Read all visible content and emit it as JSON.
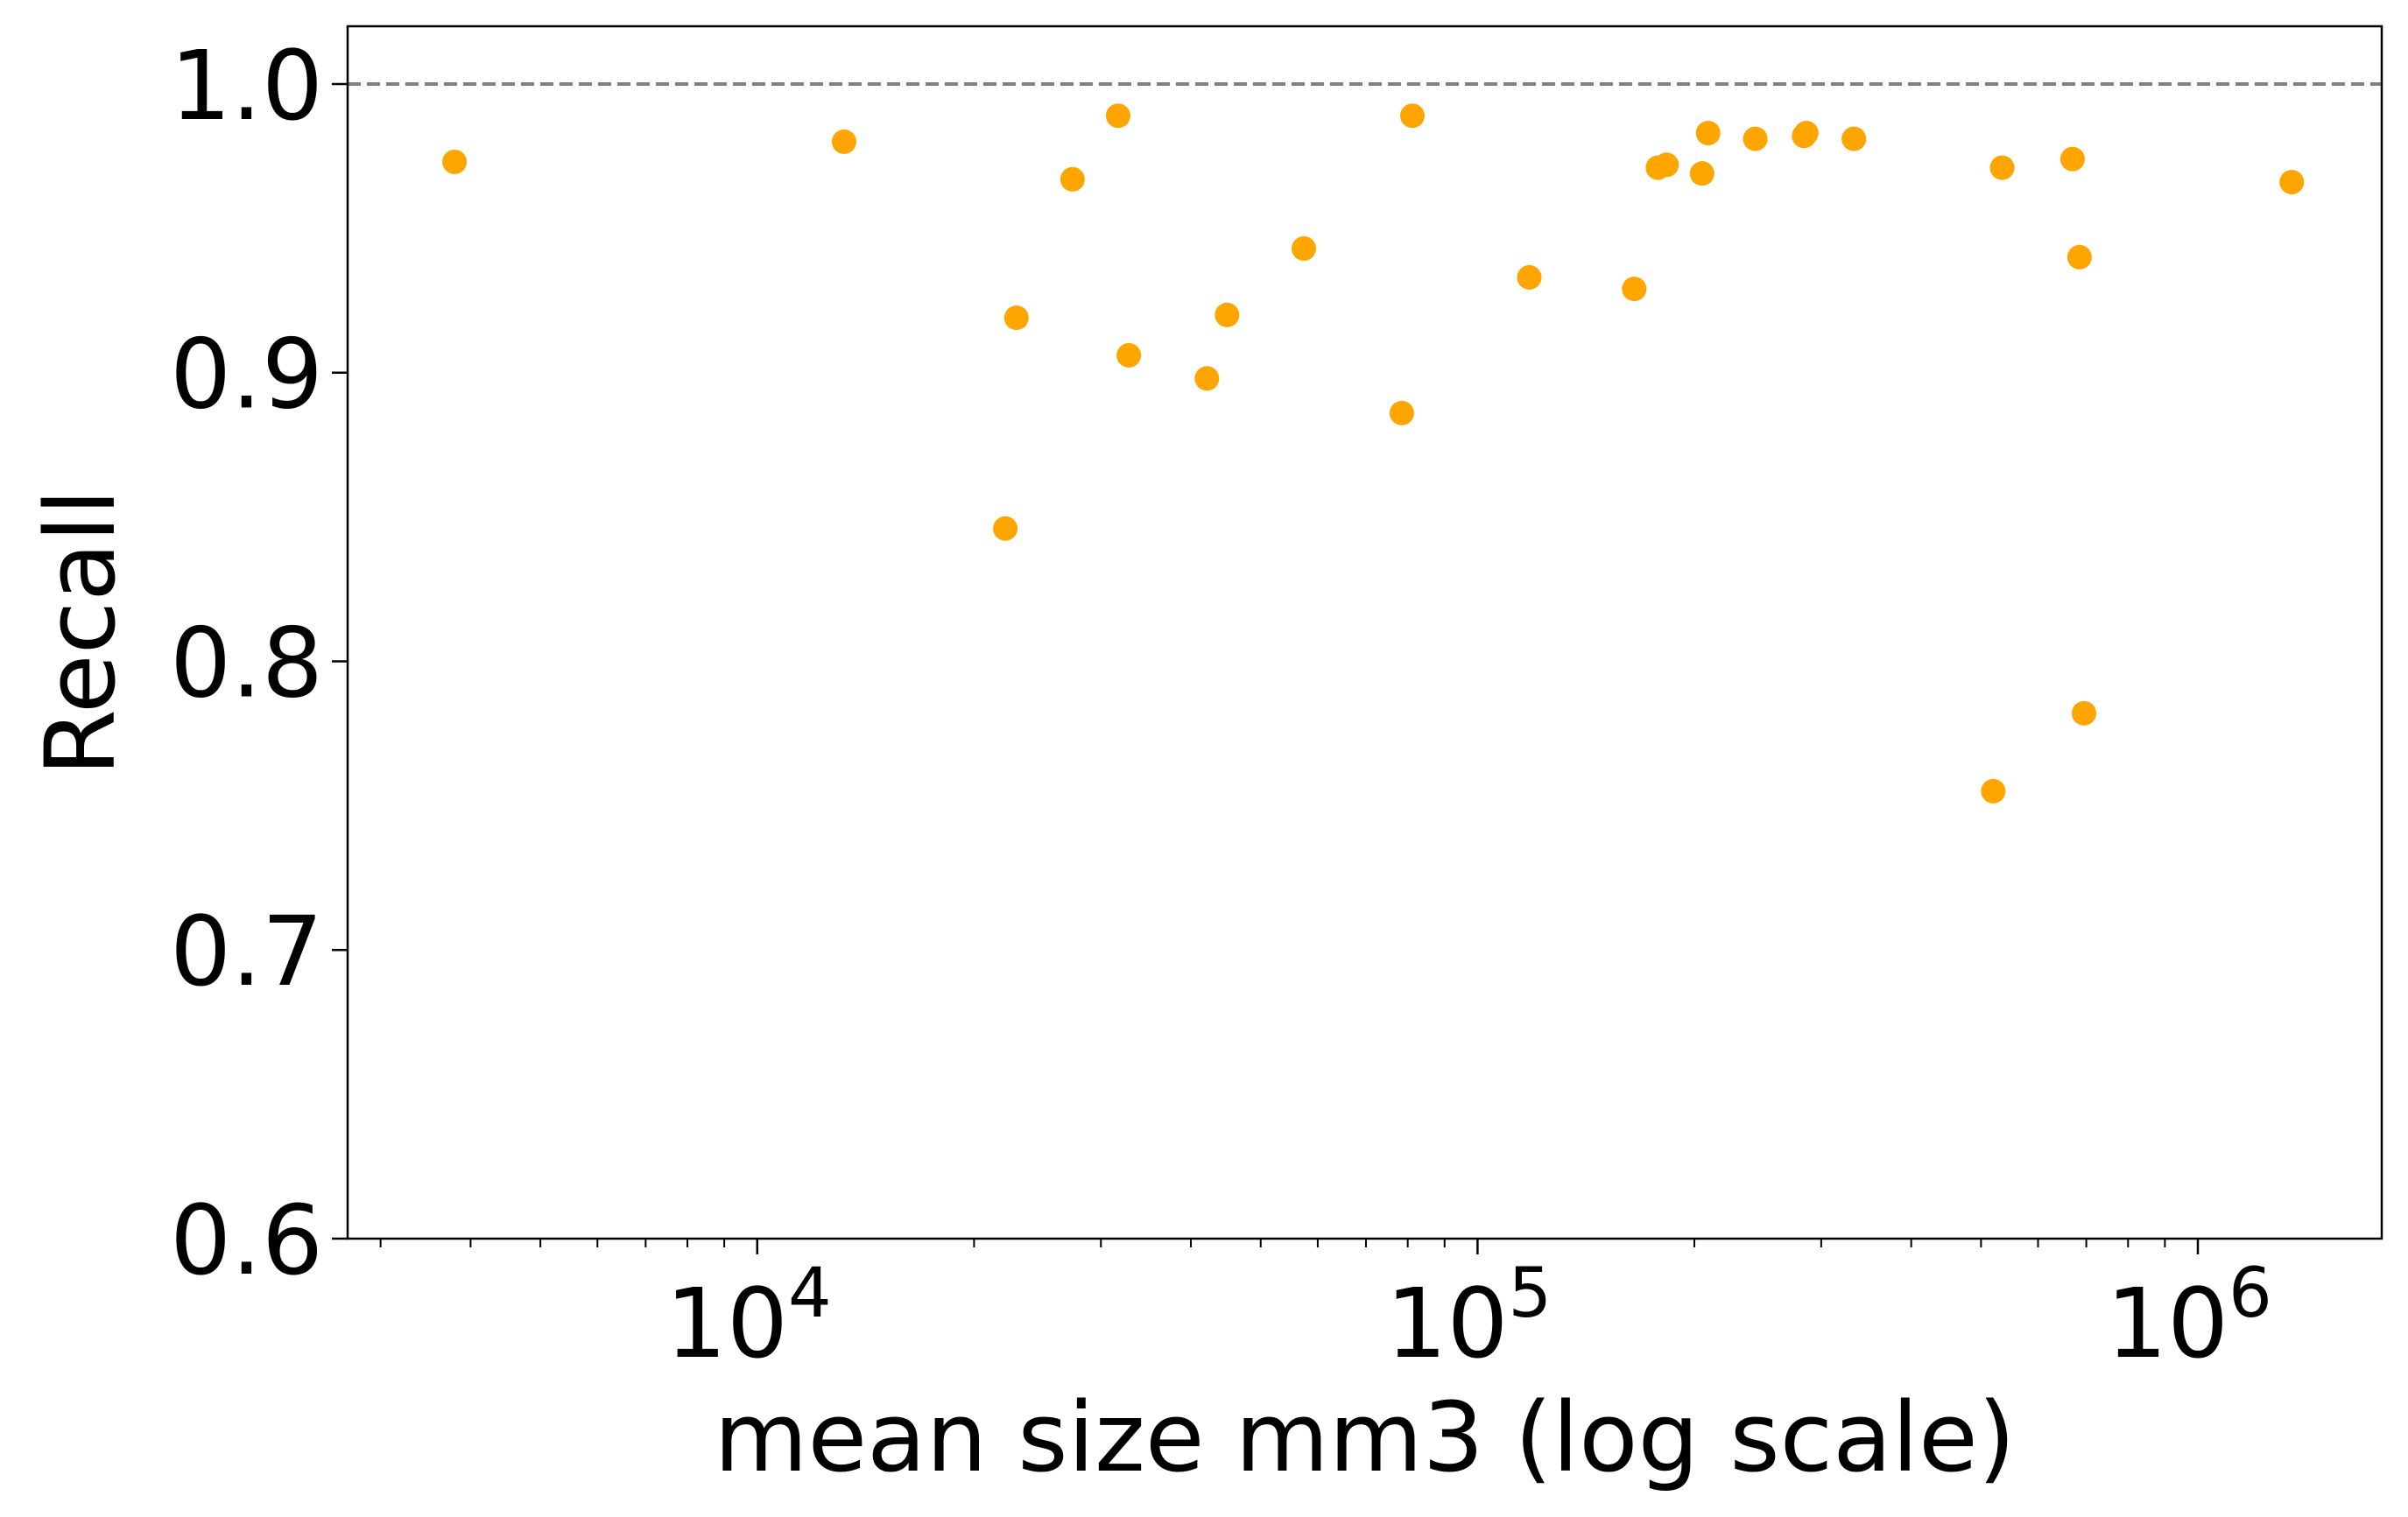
{
  "chart_data": {
    "type": "scatter",
    "xlabel": "mean size mm3 (log scale)",
    "ylabel": "Recall",
    "xscale": "log",
    "xlim": [
      2700,
      1800000
    ],
    "ylim": [
      0.6,
      1.02
    ],
    "grid": false,
    "legend": "none",
    "x_ticks": [
      {
        "value": 10000,
        "base": "10",
        "exp": "4"
      },
      {
        "value": 100000,
        "base": "10",
        "exp": "5"
      },
      {
        "value": 1000000,
        "base": "10",
        "exp": "6"
      }
    ],
    "y_ticks": [
      {
        "value": 0.6,
        "label": "0.6"
      },
      {
        "value": 0.7,
        "label": "0.7"
      },
      {
        "value": 0.8,
        "label": "0.8"
      },
      {
        "value": 0.9,
        "label": "0.9"
      },
      {
        "value": 1.0,
        "label": "1.0"
      }
    ],
    "reference_line": {
      "y": 1.0,
      "style": "dashed",
      "color": "#808080"
    },
    "marker_color": "#FFA500",
    "series": [
      {
        "points": [
          {
            "x": 3800,
            "y": 0.973
          },
          {
            "x": 13200,
            "y": 0.98
          },
          {
            "x": 22100,
            "y": 0.846
          },
          {
            "x": 22900,
            "y": 0.919
          },
          {
            "x": 27400,
            "y": 0.967
          },
          {
            "x": 31700,
            "y": 0.989
          },
          {
            "x": 32800,
            "y": 0.906
          },
          {
            "x": 42100,
            "y": 0.898
          },
          {
            "x": 44900,
            "y": 0.92
          },
          {
            "x": 57400,
            "y": 0.943
          },
          {
            "x": 78500,
            "y": 0.886
          },
          {
            "x": 81200,
            "y": 0.989
          },
          {
            "x": 118000,
            "y": 0.933
          },
          {
            "x": 165000,
            "y": 0.929
          },
          {
            "x": 178000,
            "y": 0.971
          },
          {
            "x": 183000,
            "y": 0.972
          },
          {
            "x": 205000,
            "y": 0.969
          },
          {
            "x": 209000,
            "y": 0.983
          },
          {
            "x": 243000,
            "y": 0.981
          },
          {
            "x": 284000,
            "y": 0.982
          },
          {
            "x": 286000,
            "y": 0.983
          },
          {
            "x": 333000,
            "y": 0.981
          },
          {
            "x": 520000,
            "y": 0.755
          },
          {
            "x": 535000,
            "y": 0.971
          },
          {
            "x": 670000,
            "y": 0.974
          },
          {
            "x": 685000,
            "y": 0.94
          },
          {
            "x": 695000,
            "y": 0.782
          },
          {
            "x": 1350000,
            "y": 0.966
          }
        ]
      }
    ]
  }
}
